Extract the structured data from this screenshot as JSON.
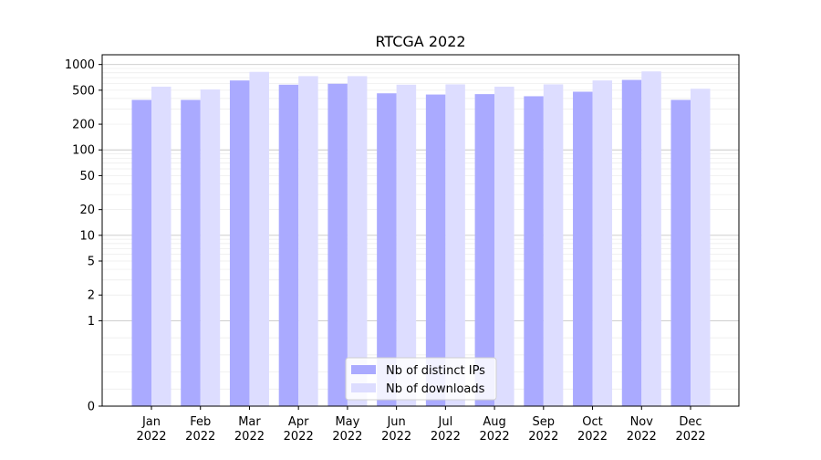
{
  "chart_data": {
    "type": "bar",
    "title": "RTCGA 2022",
    "xlabel": "",
    "ylabel": "",
    "yscale": "symlog",
    "ylim": [
      0,
      1300
    ],
    "y_ticks": [
      0,
      1,
      2,
      5,
      10,
      20,
      50,
      100,
      200,
      500,
      1000
    ],
    "grid": "horizontal",
    "legend_position": "bottom-center",
    "categories": [
      [
        "Jan",
        "2022"
      ],
      [
        "Feb",
        "2022"
      ],
      [
        "Mar",
        "2022"
      ],
      [
        "Apr",
        "2022"
      ],
      [
        "May",
        "2022"
      ],
      [
        "Jun",
        "2022"
      ],
      [
        "Jul",
        "2022"
      ],
      [
        "Aug",
        "2022"
      ],
      [
        "Sep",
        "2022"
      ],
      [
        "Oct",
        "2022"
      ],
      [
        "Nov",
        "2022"
      ],
      [
        "Dec",
        "2022"
      ]
    ],
    "series": [
      {
        "name": "Nb of distinct IPs",
        "color": "#aaaaff",
        "values": [
          385,
          385,
          650,
          580,
          595,
          460,
          445,
          450,
          425,
          480,
          660,
          385
        ]
      },
      {
        "name": "Nb of downloads",
        "color": "#ddddff",
        "values": [
          550,
          510,
          820,
          730,
          730,
          580,
          585,
          550,
          585,
          650,
          830,
          520
        ]
      }
    ]
  }
}
